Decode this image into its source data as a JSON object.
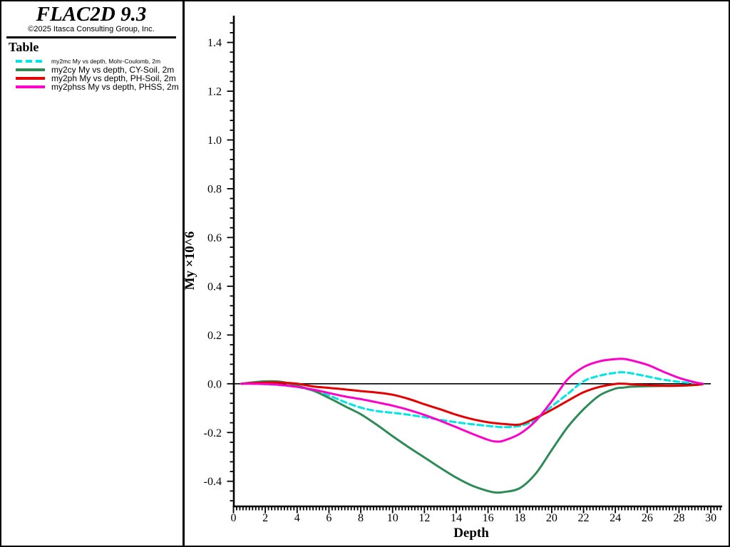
{
  "sidebar": {
    "title": "FLAC2D 9.3",
    "subtitle": "©2025 Itasca Consulting Group, Inc.",
    "legend_title": "Table",
    "legend": [
      {
        "id": "my2mc",
        "label": "my2mc My vs depth, Mohr-Coulomb, 2m",
        "color": "#00E4E4",
        "style": "dashed"
      },
      {
        "id": "my2cy",
        "label": "my2cy My vs depth, CY-Soil, 2m",
        "color": "#2E8B57",
        "style": "solid"
      },
      {
        "id": "my2ph",
        "label": "my2ph My vs depth, PH-Soil, 2m",
        "color": "#E40000",
        "style": "solid"
      },
      {
        "id": "my2phss",
        "label": "my2phss My vs depth, PHSS, 2m",
        "color": "#FF00C8",
        "style": "solid"
      }
    ]
  },
  "chart_data": {
    "type": "line",
    "xlabel": "Depth",
    "ylabel": "My ×10^6",
    "xlim": [
      0,
      30.7
    ],
    "ylim": [
      -0.5,
      1.51
    ],
    "x_tick_labels": [
      "0",
      "2",
      "4",
      "6",
      "8",
      "10",
      "12",
      "14",
      "16",
      "18",
      "20",
      "22",
      "24",
      "26",
      "28",
      "30"
    ],
    "y_tick_labels": [
      "-0.4",
      "-0.2",
      "0.0",
      "0.2",
      "0.4",
      "0.6",
      "0.8",
      "1.0",
      "1.2",
      "1.4"
    ],
    "x_minor_step": 0.2,
    "y_minor_step": 0.04,
    "grid": false,
    "zero_line": {
      "y": 0,
      "from": 0,
      "to": 30
    },
    "legend_position": "sidebar-top-left",
    "x": [
      0.5,
      1,
      2,
      3,
      4,
      5,
      6,
      7,
      8,
      9,
      10,
      11,
      12,
      13,
      14,
      15,
      16,
      16.5,
      17,
      18,
      19,
      20,
      21,
      22,
      23,
      24,
      24.5,
      25,
      26,
      27,
      28,
      29,
      29.5
    ],
    "series": [
      {
        "name": "my2mc My vs depth, Mohr-Coulomb, 2m",
        "color": "#00E4E4",
        "dash": "8 5",
        "y": [
          0,
          0,
          -0.002,
          -0.006,
          -0.013,
          -0.028,
          -0.048,
          -0.075,
          -0.098,
          -0.112,
          -0.119,
          -0.127,
          -0.137,
          -0.148,
          -0.158,
          -0.166,
          -0.173,
          -0.176,
          -0.178,
          -0.173,
          -0.148,
          -0.093,
          -0.042,
          0.01,
          0.033,
          0.045,
          0.047,
          0.043,
          0.03,
          0.017,
          0.008,
          0.002,
          0
        ]
      },
      {
        "name": "my2cy My vs depth, CY-Soil, 2m",
        "color": "#2E8B57",
        "dash": null,
        "y": [
          0,
          0.004,
          0.01,
          0.008,
          -0.008,
          -0.028,
          -0.058,
          -0.092,
          -0.125,
          -0.168,
          -0.215,
          -0.26,
          -0.302,
          -0.345,
          -0.385,
          -0.418,
          -0.44,
          -0.446,
          -0.444,
          -0.428,
          -0.368,
          -0.272,
          -0.178,
          -0.105,
          -0.048,
          -0.02,
          -0.016,
          -0.012,
          -0.01,
          -0.009,
          -0.008,
          -0.005,
          -0.002
        ]
      },
      {
        "name": "my2ph My vs depth, PH-Soil, 2m",
        "color": "#E40000",
        "dash": null,
        "y": [
          0,
          0.002,
          0.005,
          0.005,
          0.0,
          -0.011,
          -0.017,
          -0.023,
          -0.03,
          -0.036,
          -0.045,
          -0.062,
          -0.084,
          -0.105,
          -0.127,
          -0.145,
          -0.158,
          -0.162,
          -0.165,
          -0.167,
          -0.14,
          -0.107,
          -0.07,
          -0.035,
          -0.013,
          -0.001,
          0.0,
          -0.002,
          -0.006,
          -0.008,
          -0.008,
          -0.005,
          -0.001
        ]
      },
      {
        "name": "my2phss My vs depth, PHSS, 2m",
        "color": "#FF00C8",
        "dash": null,
        "y": [
          0,
          0,
          -0.001,
          -0.005,
          -0.013,
          -0.024,
          -0.038,
          -0.052,
          -0.063,
          -0.076,
          -0.09,
          -0.107,
          -0.128,
          -0.152,
          -0.178,
          -0.205,
          -0.23,
          -0.237,
          -0.233,
          -0.205,
          -0.152,
          -0.072,
          0.018,
          0.068,
          0.092,
          0.101,
          0.102,
          0.096,
          0.078,
          0.05,
          0.024,
          0.006,
          0
        ]
      }
    ]
  }
}
